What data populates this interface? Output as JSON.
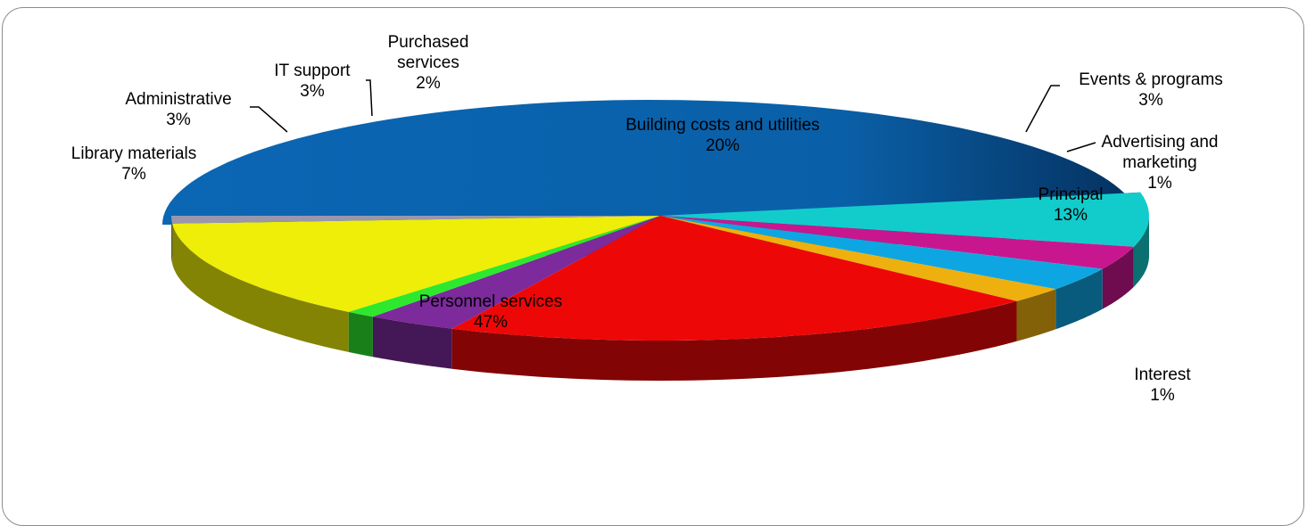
{
  "chart_data": {
    "type": "pie",
    "title": "",
    "three_d": true,
    "slices": [
      {
        "name": "Personnel services",
        "label_lines": [
          "Personnel services",
          "47%"
        ],
        "value": 47,
        "color": "#0a62ae"
      },
      {
        "name": "Library materials",
        "label_lines": [
          "Library materials",
          "7%"
        ],
        "value": 7,
        "color": "#12cccc"
      },
      {
        "name": "Administrative",
        "label_lines": [
          "Administrative",
          "3%"
        ],
        "value": 3,
        "color": "#c8168f"
      },
      {
        "name": "IT support",
        "label_lines": [
          "IT support",
          "3%"
        ],
        "value": 3,
        "color": "#0ea6e2"
      },
      {
        "name": "Purchased services",
        "label_lines": [
          "Purchased",
          "services",
          "2%"
        ],
        "value": 2,
        "color": "#eeb00e"
      },
      {
        "name": "Building costs and utilities",
        "label_lines": [
          "Building costs and utilities",
          "20%"
        ],
        "value": 20,
        "color": "#ee0707"
      },
      {
        "name": "Events & programs",
        "label_lines": [
          "Events & programs",
          "3%"
        ],
        "value": 3,
        "color": "#7c2a9c"
      },
      {
        "name": "Advertising and marketing",
        "label_lines": [
          "Advertising and",
          "marketing",
          "1%"
        ],
        "value": 1,
        "color": "#2ee82e"
      },
      {
        "name": "Principal",
        "label_lines": [
          "Principal",
          "13%"
        ],
        "value": 13,
        "color": "#eeee08"
      },
      {
        "name": "Interest",
        "label_lines": [
          "Interest",
          "1%"
        ],
        "value": 1,
        "color": "#9a96ac"
      }
    ]
  }
}
